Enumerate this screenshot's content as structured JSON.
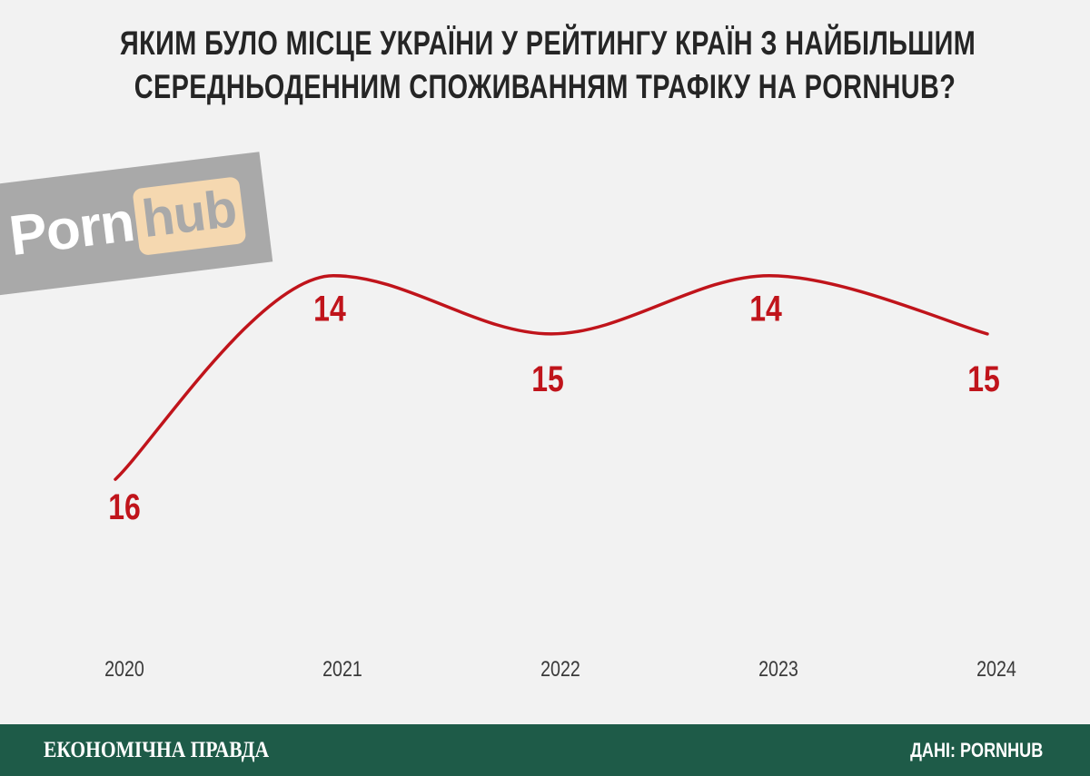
{
  "title": {
    "line1": "ЯКИМ БУЛО МІСЦЕ УКРАЇНИ У РЕЙТИНГУ КРАЇН З НАЙБІЛЬШИМ",
    "line2": "СЕРЕДНЬОДЕННИМ СПОЖИВАННЯМ ТРАФІКУ НА PORNHUB?"
  },
  "logo": {
    "word1": "Porn",
    "word2": "hub"
  },
  "colors": {
    "line": "#c0141b",
    "value_label": "#c0141b",
    "axis_label": "#3a3a3a",
    "footer_bg": "#1e5b48",
    "background": "#f2f2f2"
  },
  "chart_data": {
    "type": "line",
    "title": "ЯКИМ БУЛО МІСЦЕ УКРАЇНИ У РЕЙТИНГУ КРАЇН З НАЙБІЛЬШИМ СЕРЕДНЬОДЕННИМ СПОЖИВАННЯМ ТРАФІКУ НА PORNHUB?",
    "xlabel": "",
    "ylabel": "",
    "categories": [
      "2020",
      "2021",
      "2022",
      "2023",
      "2024"
    ],
    "values": [
      16,
      14,
      15,
      14,
      15
    ],
    "data_labels": [
      "16",
      "14",
      "15",
      "14",
      "15"
    ],
    "y_inverted": true,
    "ylim": [
      13.7,
      16.4
    ],
    "smooth": true,
    "grid": false,
    "legend": "none"
  },
  "footer": {
    "brand": "ЕКОНОМІЧНА ПРАВДА",
    "source": "ДАНІ: PORNHUB"
  }
}
